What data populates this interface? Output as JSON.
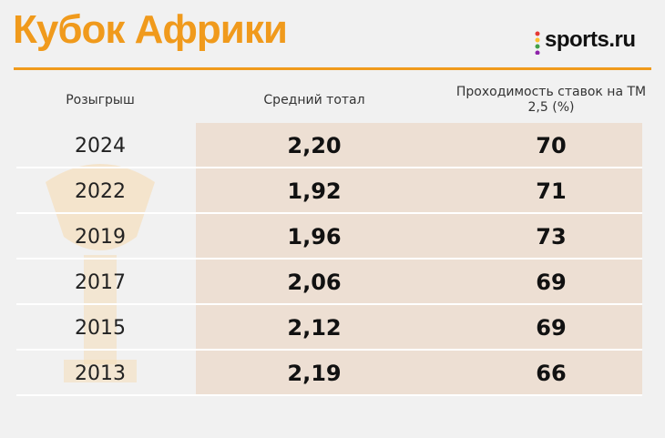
{
  "header": {
    "title": "Кубок Африки",
    "logo": "sports.ru"
  },
  "table": {
    "columns": [
      "Розыгрыш",
      "Средний тотал",
      "Проходимость ставок на ТМ 2,5 (%)"
    ],
    "rows": [
      [
        "2024",
        "2,20",
        "70"
      ],
      [
        "2022",
        "1,92",
        "71"
      ],
      [
        "2019",
        "1,96",
        "73"
      ],
      [
        "2017",
        "2,06",
        "69"
      ],
      [
        "2015",
        "2,12",
        "69"
      ],
      [
        "2013",
        "2,19",
        "66"
      ]
    ]
  }
}
